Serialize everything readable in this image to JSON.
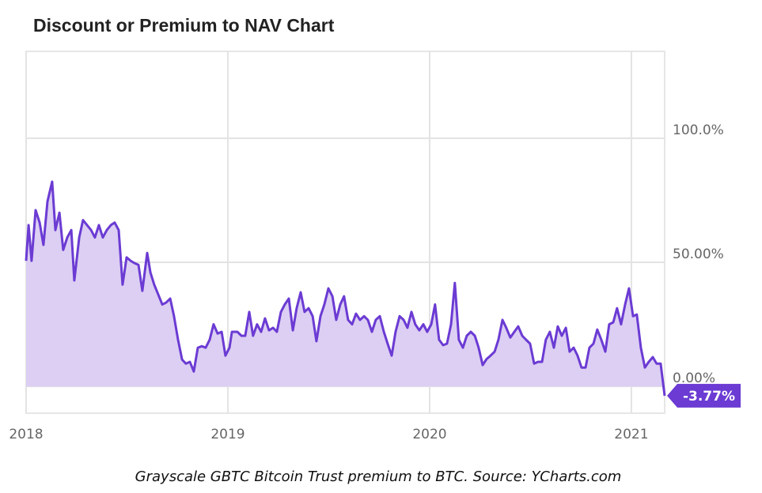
{
  "chart_data": {
    "type": "area",
    "title": "Discount or Premium to NAV Chart",
    "caption": "Grayscale GBTC Bitcoin Trust premium to BTC. Source: YCharts.com",
    "color": "#6b3bd3",
    "fill_color": "#dccff3",
    "grid": true,
    "xlim": [
      2018,
      2021.165
    ],
    "xticks": [
      2018,
      2019,
      2020,
      2021
    ],
    "ylim": [
      -10.8,
      135
    ],
    "yticks": [
      {
        "value": 0,
        "label": "0.00%"
      },
      {
        "value": 50,
        "label": "50.00%"
      },
      {
        "value": 100,
        "label": "100.0%"
      }
    ],
    "last_label": "-3.77%",
    "x": [
      2018.0,
      2018.012,
      2018.027,
      2018.047,
      2018.067,
      2018.086,
      2018.106,
      2018.129,
      2018.145,
      2018.165,
      2018.184,
      2018.204,
      2018.224,
      2018.239,
      2018.263,
      2018.282,
      2018.302,
      2018.322,
      2018.341,
      2018.361,
      2018.38,
      2018.4,
      2018.42,
      2018.439,
      2018.459,
      2018.478,
      2018.498,
      2018.518,
      2018.537,
      2018.557,
      2018.576,
      2018.6,
      2018.616,
      2018.635,
      2018.655,
      2018.675,
      2018.694,
      2018.714,
      2018.733,
      2018.753,
      2018.773,
      2018.792,
      2018.812,
      2018.831,
      2018.851,
      2018.871,
      2018.89,
      2018.91,
      2018.929,
      2018.949,
      2018.969,
      2018.988,
      2019.008,
      2019.02,
      2019.047,
      2019.067,
      2019.086,
      2019.106,
      2019.125,
      2019.145,
      2019.165,
      2019.184,
      2019.204,
      2019.224,
      2019.243,
      2019.263,
      2019.282,
      2019.302,
      2019.322,
      2019.341,
      2019.361,
      2019.38,
      2019.4,
      2019.42,
      2019.439,
      2019.459,
      2019.478,
      2019.498,
      2019.518,
      2019.537,
      2019.557,
      2019.576,
      2019.596,
      2019.616,
      2019.635,
      2019.655,
      2019.675,
      2019.694,
      2019.714,
      2019.733,
      2019.753,
      2019.773,
      2019.792,
      2019.812,
      2019.831,
      2019.851,
      2019.871,
      2019.89,
      2019.91,
      2019.929,
      2019.949,
      2019.969,
      2019.988,
      2020.008,
      2020.027,
      2020.047,
      2020.067,
      2020.086,
      2020.106,
      2020.125,
      2020.145,
      2020.165,
      2020.184,
      2020.204,
      2020.224,
      2020.243,
      2020.263,
      2020.282,
      2020.302,
      2020.322,
      2020.341,
      2020.361,
      2020.38,
      2020.4,
      2020.42,
      2020.439,
      2020.459,
      2020.478,
      2020.498,
      2020.518,
      2020.537,
      2020.557,
      2020.576,
      2020.596,
      2020.616,
      2020.635,
      2020.655,
      2020.675,
      2020.694,
      2020.714,
      2020.733,
      2020.753,
      2020.773,
      2020.792,
      2020.812,
      2020.831,
      2020.851,
      2020.871,
      2020.89,
      2020.91,
      2020.929,
      2020.949,
      2020.969,
      2020.988,
      2021.008,
      2021.027,
      2021.047,
      2021.067,
      2021.086,
      2021.106,
      2021.125,
      2021.145,
      2021.165
    ],
    "values": [
      50.6,
      65,
      50.6,
      71,
      66,
      57,
      74.5,
      82.5,
      63,
      70,
      55,
      60,
      63,
      42.7,
      60,
      67,
      65,
      63,
      60,
      65,
      60,
      63,
      65,
      66,
      63,
      41,
      52,
      50.6,
      49.7,
      49,
      38.5,
      53.8,
      45.9,
      41,
      37,
      33,
      33.8,
      35.4,
      28.3,
      18.8,
      10.8,
      9.2,
      9.9,
      6,
      15.6,
      16.2,
      15.6,
      18.8,
      25,
      21.3,
      22,
      12.4,
      15.6,
      22,
      22,
      20.4,
      20.4,
      30,
      20.4,
      25,
      22,
      27.4,
      22.6,
      23.6,
      22,
      30,
      33,
      35.4,
      22.6,
      31.5,
      37.9,
      30,
      31.5,
      28.3,
      18.2,
      28.3,
      33,
      39.5,
      36.3,
      26.8,
      33,
      36.3,
      26.8,
      25,
      29.3,
      26.8,
      28.3,
      26.8,
      22,
      26.8,
      28.3,
      22,
      17.2,
      12.4,
      22,
      28.3,
      26.8,
      23.6,
      30,
      25,
      22.6,
      25,
      22,
      25,
      33,
      18.8,
      16.6,
      17.2,
      25,
      41.7,
      18.8,
      15.6,
      20.4,
      22,
      20.4,
      15.6,
      8.6,
      11,
      12.4,
      14,
      18.8,
      26.8,
      23.6,
      19.7,
      22,
      24.2,
      20.4,
      18.8,
      17.2,
      9.2,
      9.9,
      9.9,
      18.8,
      22,
      15.6,
      24.2,
      20.4,
      23.6,
      14,
      15.6,
      12.4,
      7.6,
      7.6,
      15.6,
      17.2,
      22.9,
      18.8,
      14,
      25,
      25.8,
      31.5,
      25,
      33,
      39.5,
      28.3,
      29,
      15.6,
      7.6,
      9.9,
      11.8,
      9.2,
      9.2,
      -3.77
    ]
  }
}
